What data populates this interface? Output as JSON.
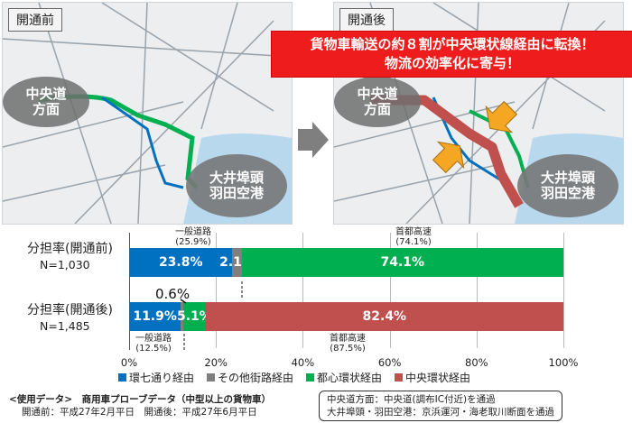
{
  "panels": {
    "before": {
      "label": "開通前",
      "origin": "中央道\n方面",
      "dest": "大井埠頭\n羽田空港"
    },
    "after": {
      "label": "開通後",
      "origin": "中央道\n方面",
      "dest": "大井埠頭\n羽田空港"
    }
  },
  "headline": {
    "line1": "貨物車輸送の約８割が中央環状線経由に転換！",
    "line2": "物流の効率化に寄与！"
  },
  "colors": {
    "kan7": "#0070c0",
    "other": "#7f7f7f",
    "toshin": "#00b050",
    "chuo": "#c0504d"
  },
  "chart_data": {
    "type": "bar",
    "orientation": "horizontal",
    "stacked": true,
    "categories": [
      "分担率(開通前)",
      "分担率(開通後)"
    ],
    "sample_sizes": [
      "N=1,030",
      "N=1,485"
    ],
    "series": [
      {
        "name": "環七通り経由",
        "values": [
          23.8,
          11.9
        ],
        "labels": [
          "23.8%",
          "11.9%"
        ]
      },
      {
        "name": "その他街路経由",
        "values": [
          2.1,
          0.6
        ],
        "labels": [
          "2.1%",
          "0.6%"
        ]
      },
      {
        "name": "都心環状経由",
        "values": [
          74.1,
          5.1
        ],
        "labels": [
          "74.1%",
          "5.1%"
        ]
      },
      {
        "name": "中央環状経由",
        "values": [
          0,
          82.4
        ],
        "labels": [
          "",
          "82.4%"
        ]
      }
    ],
    "annotations": {
      "before_general": {
        "line1": "一般道路",
        "line2": "(25.9%)"
      },
      "before_expressway": {
        "line1": "首都高速",
        "line2": "(74.1%)"
      },
      "after_general": {
        "line1": "一般道路",
        "line2": "(12.5%)"
      },
      "after_expressway": {
        "line1": "首都高速",
        "line2": "(87.5%)"
      }
    },
    "xlim": [
      0,
      100
    ],
    "xticks": [
      "0%",
      "20%",
      "40%",
      "60%",
      "80%",
      "100%"
    ]
  },
  "footer": {
    "data_title": "<使用データ>　商用車プローブデータ（中型以上の貨物車）",
    "periods": "開通前：平成27年2月平日　開通後：平成27年6月平日",
    "route1": "中央道方面：中央道(調布IC付近)を通過",
    "route2": "大井埠頭・羽田空港：京浜運河・海老取川断面を通過"
  }
}
